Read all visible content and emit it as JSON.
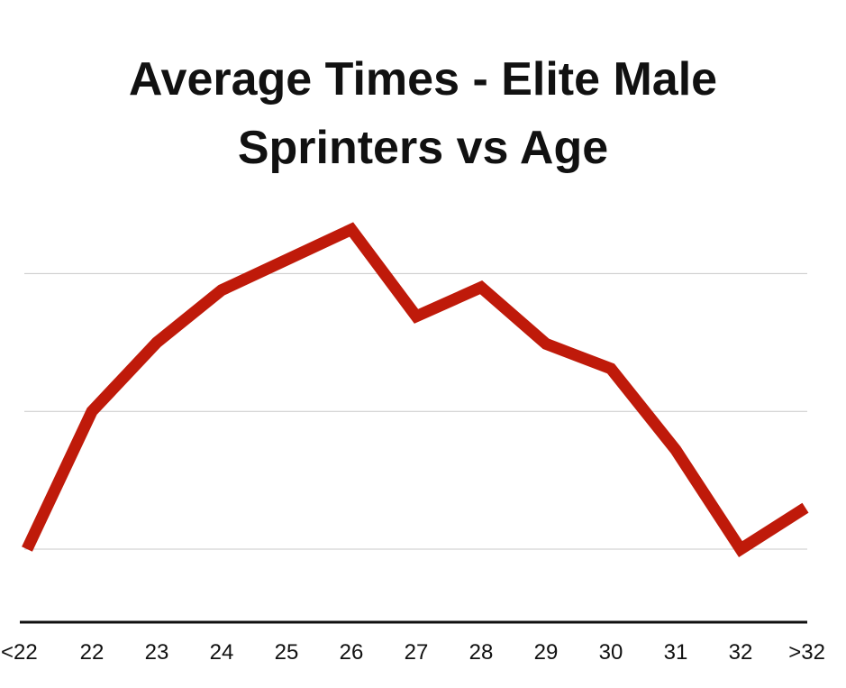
{
  "chart_data": {
    "type": "line",
    "title": "Average Times - Elite Male Sprinters vs Age",
    "title_lines": [
      "Average Times - Elite Male",
      "Sprinters vs Age"
    ],
    "xlabel": "",
    "ylabel": "",
    "categories": [
      "<22",
      "22",
      "23",
      "24",
      "25",
      "26",
      "27",
      "28",
      "29",
      "30",
      "31",
      "32",
      ">32"
    ],
    "series": [
      {
        "values": [
          0.0,
          1.0,
          1.5,
          1.88,
          2.1,
          2.32,
          1.69,
          1.9,
          1.49,
          1.31,
          0.72,
          0.0,
          0.3
        ],
        "color": "#bf1a0a"
      }
    ],
    "ylim": [
      -0.53,
      2.5
    ],
    "gridlines": [
      0,
      1,
      2
    ],
    "grid": true,
    "y_tick_labels": false,
    "legend": "none",
    "colors": {
      "line": "#bf1a0a",
      "grid": "#c8c8c8",
      "axis": "#111111"
    }
  }
}
